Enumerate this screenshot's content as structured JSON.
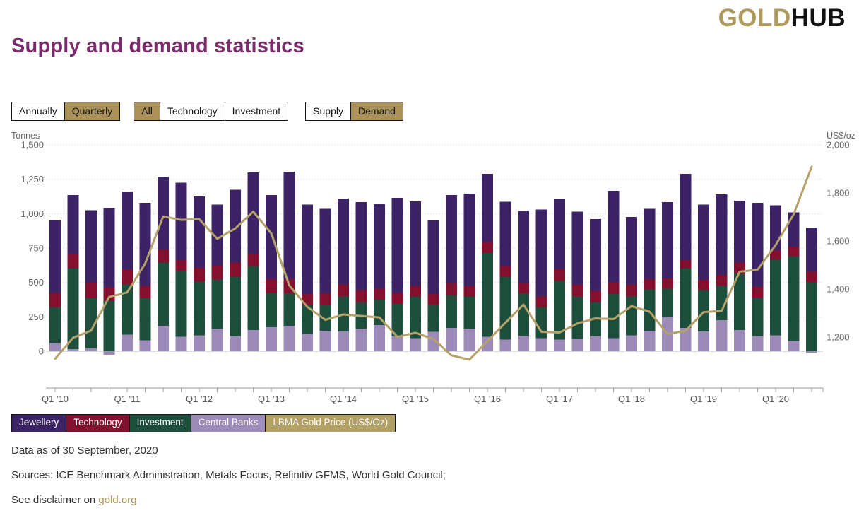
{
  "logo": {
    "gold": "GOLD",
    "hub": "HUB"
  },
  "page_title": "Supply and demand statistics",
  "controls": {
    "frequency": {
      "options": [
        "Annually",
        "Quarterly"
      ],
      "active": "Quarterly"
    },
    "category": {
      "options": [
        "All",
        "Technology",
        "Investment"
      ],
      "active": "All"
    },
    "flow": {
      "options": [
        "Supply",
        "Demand"
      ],
      "active": "Demand"
    }
  },
  "chart_data": {
    "type": "bar",
    "subtype": "stacked-bars-with-line",
    "left_axis": {
      "title": "Tonnes",
      "ticks": [
        0,
        250,
        500,
        750,
        1000,
        1250,
        1500
      ],
      "range": [
        0,
        1500
      ],
      "grid": "dotted"
    },
    "right_axis": {
      "title": "US$/oz",
      "ticks": [
        2000,
        1800,
        1600,
        1400,
        1200
      ]
    },
    "x_year_labels": [
      "Q1 '10",
      "Q1 '11",
      "Q1 '12",
      "Q1 '13",
      "Q1 '14",
      "Q1 '15",
      "Q1 '16",
      "Q1 '17",
      "Q1 '18",
      "Q1 '19",
      "Q1 '20"
    ],
    "categories": [
      "Q1 '10",
      "Q2 '10",
      "Q3 '10",
      "Q4 '10",
      "Q1 '11",
      "Q2 '11",
      "Q3 '11",
      "Q4 '11",
      "Q1 '12",
      "Q2 '12",
      "Q3 '12",
      "Q4 '12",
      "Q1 '13",
      "Q2 '13",
      "Q3 '13",
      "Q4 '13",
      "Q1 '14",
      "Q2 '14",
      "Q3 '14",
      "Q4 '14",
      "Q1 '15",
      "Q2 '15",
      "Q3 '15",
      "Q4 '15",
      "Q1 '16",
      "Q2 '16",
      "Q3 '16",
      "Q4 '16",
      "Q1 '17",
      "Q2 '17",
      "Q3 '17",
      "Q4 '17",
      "Q1 '18",
      "Q2 '18",
      "Q3 '18",
      "Q4 '18",
      "Q1 '19",
      "Q2 '19",
      "Q3 '19",
      "Q4 '19",
      "Q1 '20",
      "Q2 '20",
      "Q3 '20"
    ],
    "series": [
      {
        "name": "Central Banks",
        "color": "#9C8AB8",
        "values": [
          60,
          15,
          20,
          -25,
          120,
          80,
          185,
          105,
          115,
          165,
          110,
          155,
          175,
          185,
          125,
          150,
          145,
          165,
          190,
          110,
          95,
          140,
          170,
          165,
          105,
          85,
          112,
          95,
          86,
          90,
          110,
          95,
          115,
          150,
          250,
          170,
          145,
          225,
          155,
          110,
          115,
          75,
          -12
        ]
      },
      {
        "name": "Investment",
        "color": "#1D4F3C",
        "values": [
          260,
          585,
          365,
          365,
          365,
          305,
          460,
          480,
          390,
          360,
          430,
          465,
          250,
          235,
          210,
          185,
          255,
          195,
          185,
          235,
          300,
          200,
          235,
          230,
          610,
          455,
          310,
          225,
          425,
          310,
          245,
          320,
          285,
          300,
          205,
          430,
          300,
          250,
          410,
          280,
          550,
          615,
          500
        ]
      },
      {
        "name": "Technology",
        "color": "#82102E",
        "values": [
          105,
          110,
          115,
          100,
          110,
          90,
          95,
          75,
          105,
          100,
          105,
          90,
          100,
          105,
          80,
          85,
          85,
          85,
          80,
          80,
          80,
          75,
          90,
          80,
          80,
          78,
          75,
          78,
          88,
          85,
          85,
          85,
          85,
          75,
          75,
          60,
          75,
          80,
          80,
          80,
          70,
          70,
          77
        ]
      },
      {
        "name": "Jewellery",
        "color": "#3B2366",
        "values": [
          530,
          425,
          525,
          575,
          565,
          605,
          525,
          565,
          515,
          440,
          530,
          590,
          610,
          780,
          650,
          615,
          625,
          640,
          615,
          690,
          615,
          535,
          640,
          670,
          495,
          468,
          523,
          632,
          511,
          530,
          520,
          665,
          490,
          510,
          555,
          630,
          545,
          585,
          450,
          610,
          325,
          250,
          320
        ]
      }
    ],
    "line": {
      "name": "LBMA Gold Price (US$/Oz)",
      "color": "#B5A26B",
      "axis": "right",
      "values": [
        1110,
        1197,
        1227,
        1367,
        1386,
        1506,
        1702,
        1688,
        1691,
        1609,
        1652,
        1722,
        1632,
        1415,
        1326,
        1272,
        1294,
        1288,
        1282,
        1201,
        1218,
        1192,
        1124,
        1106,
        1183,
        1260,
        1335,
        1222,
        1219,
        1257,
        1278,
        1275,
        1329,
        1306,
        1213,
        1226,
        1304,
        1309,
        1472,
        1481,
        1583,
        1711,
        1909
      ]
    }
  },
  "legend": [
    {
      "id": "jewellery",
      "label": "Jewellery",
      "color": "#3B2366"
    },
    {
      "id": "technology",
      "label": "Technology",
      "color": "#82102E"
    },
    {
      "id": "investment",
      "label": "Investment",
      "color": "#1D4F3C"
    },
    {
      "id": "central-banks",
      "label": "Central Banks",
      "color": "#9C8AB8"
    },
    {
      "id": "lbma-gold-price",
      "label": "LBMA Gold Price (US$/Oz)",
      "color": "#B3A065"
    }
  ],
  "footer": {
    "data_as_of": "Data as of 30 September, 2020",
    "sources": "Sources: ICE Benchmark Administration, Metals Focus, Refinitiv GFMS, World Gold Council;",
    "disclaimer_prefix": "See disclaimer on ",
    "disclaimer_link": "gold.org"
  }
}
